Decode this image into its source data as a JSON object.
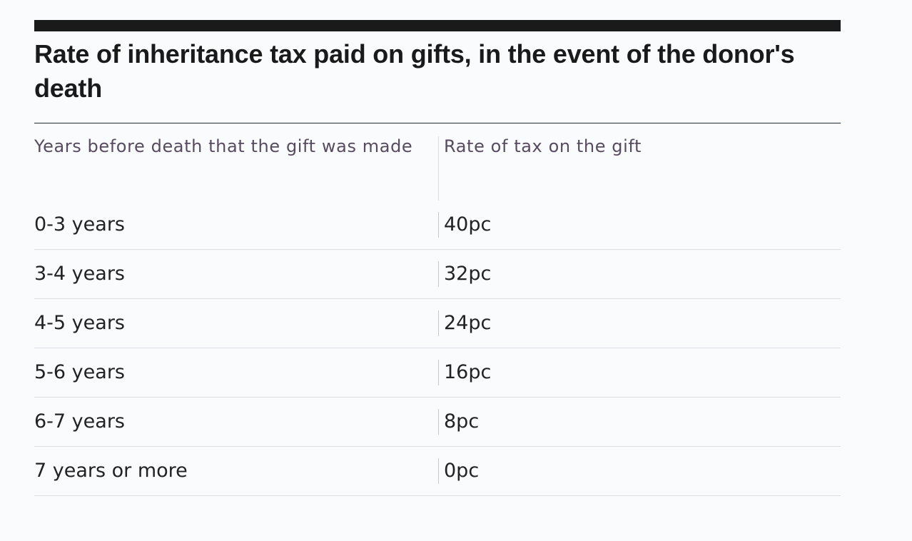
{
  "chart_data": {
    "type": "table",
    "title": "Rate of inheritance tax paid on gifts, in the event of the donor's death",
    "columns": [
      "Years before death that the gift was made",
      "Rate of tax on the gift"
    ],
    "rows": [
      {
        "years": "0-3 years",
        "rate": "40pc",
        "rate_value": 40
      },
      {
        "years": "3-4 years",
        "rate": "32pc",
        "rate_value": 32
      },
      {
        "years": "4-5 years",
        "rate": "24pc",
        "rate_value": 24
      },
      {
        "years": "5-6 years",
        "rate": "16pc",
        "rate_value": 16
      },
      {
        "years": "6-7 years",
        "rate": "8pc",
        "rate_value": 8
      },
      {
        "years": "7 years or more",
        "rate": "0pc",
        "rate_value": 0
      }
    ]
  }
}
